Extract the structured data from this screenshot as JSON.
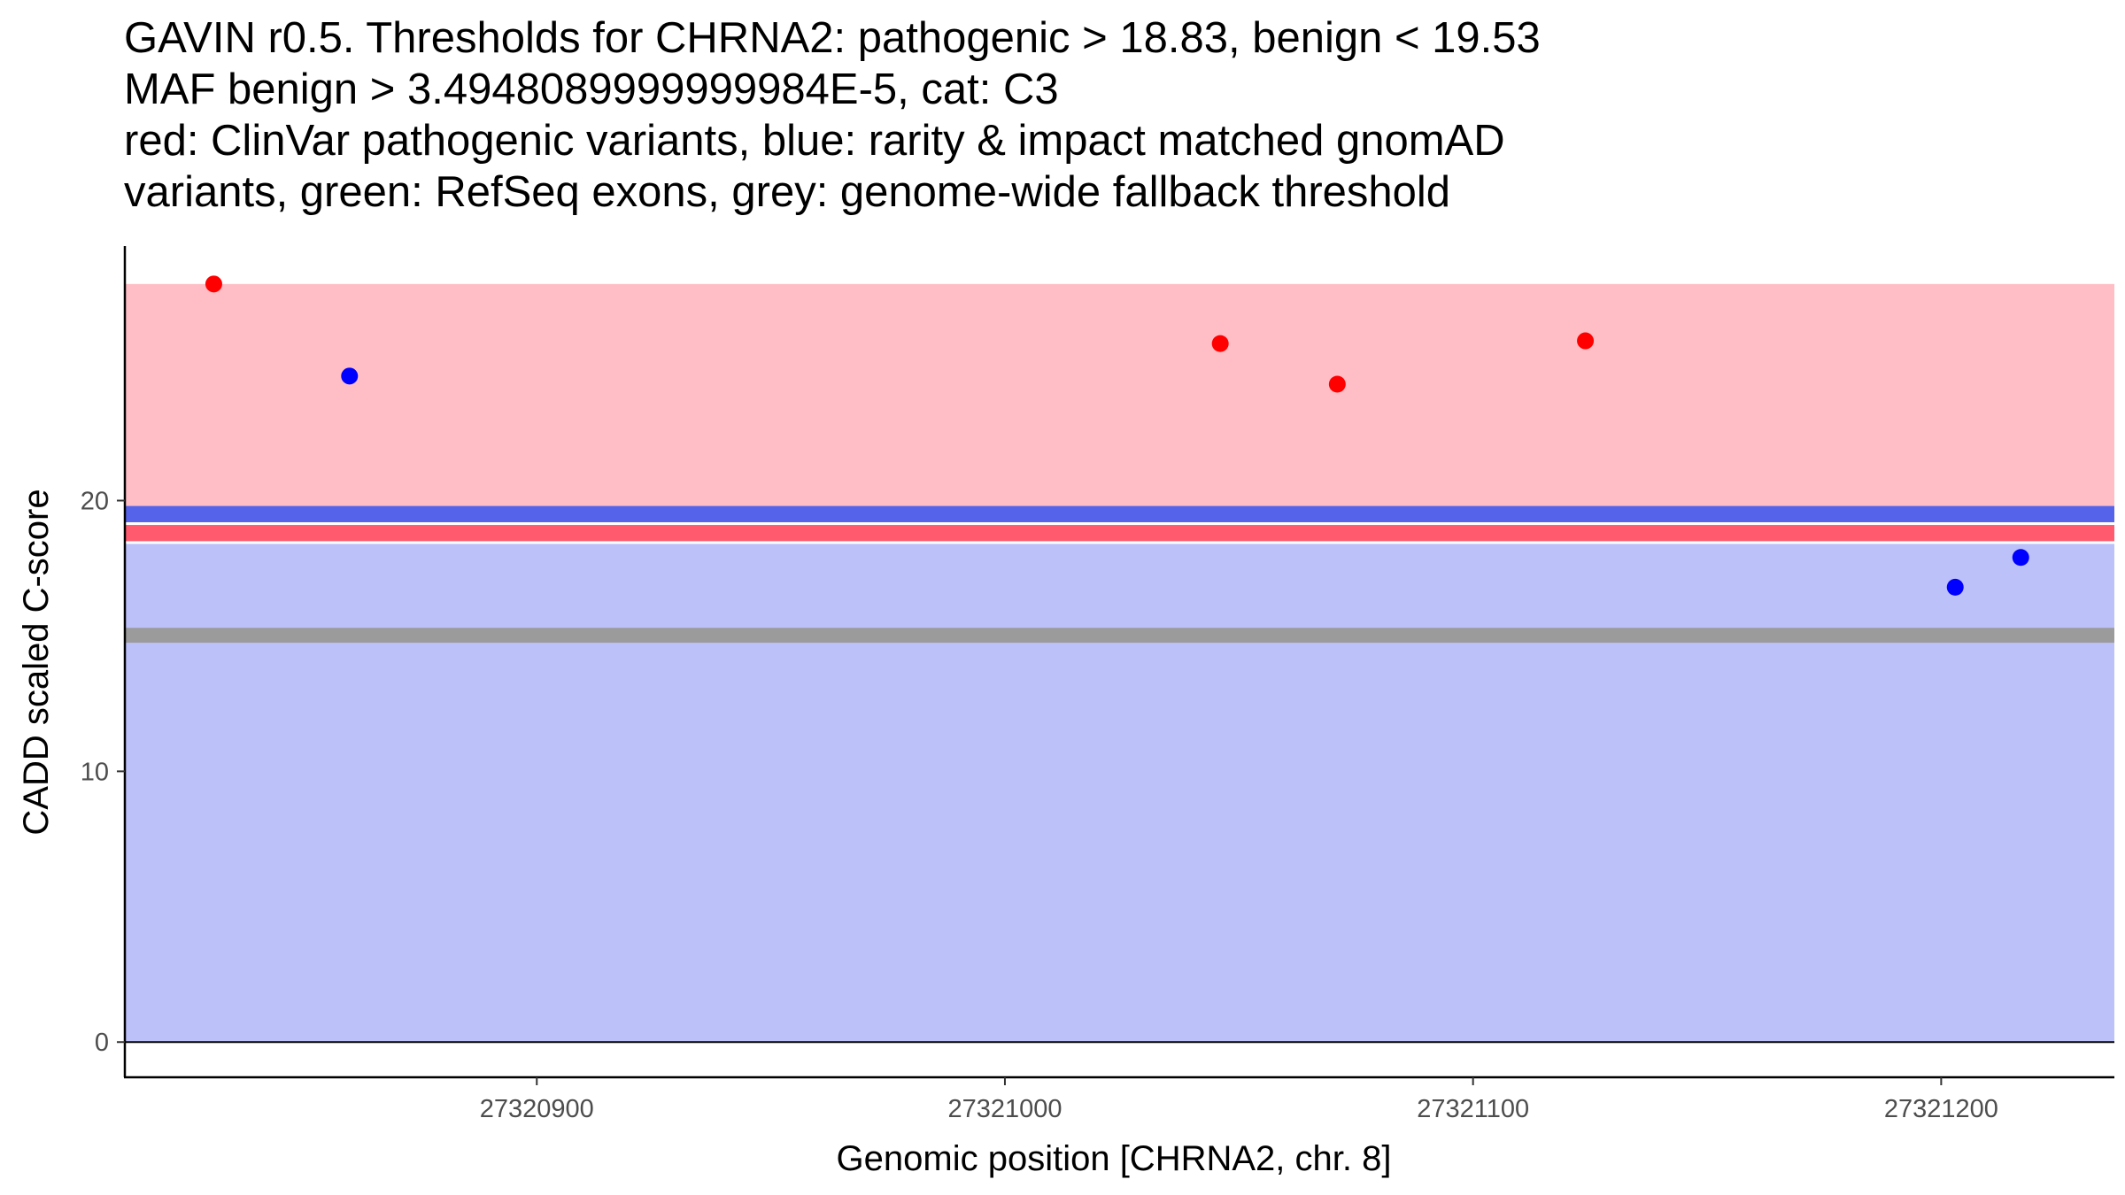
{
  "title": {
    "lines": [
      "GAVIN r0.5. Thresholds for CHRNA2: pathogenic > 18.83, benign < 19.53",
      "MAF benign > 3.4948089999999984E-5, cat: C3",
      "red: ClinVar pathogenic variants, blue: rarity & impact matched gnomAD",
      "variants, green: RefSeq exons, grey: genome-wide fallback threshold"
    ]
  },
  "colors": {
    "pathogenic_region": "#ffbec5",
    "benign_region": "#bcc1fa",
    "benign_threshold_band": "#5563ea",
    "pathogenic_threshold_band": "#ff5a6e",
    "fallback_threshold_band": "#9b9b9b",
    "pathogenic_point": "#ff0000",
    "benign_point": "#0000ff",
    "axis": "#000000"
  },
  "chart_data": {
    "type": "scatter",
    "title": "GAVIN r0.5. Thresholds for CHRNA2: pathogenic > 18.83, benign < 19.53",
    "xlabel": "Genomic position [CHRNA2, chr. 8]",
    "ylabel": "CADD scaled C-score",
    "xlim": [
      27320812,
      27321237
    ],
    "ylim": [
      -1.3,
      29.4
    ],
    "x_ticks": [
      27320900,
      27321000,
      27321100,
      27321200
    ],
    "x_tick_labels": [
      "27320900",
      "27321000",
      "27321100",
      "27321200"
    ],
    "y_ticks": [
      0,
      10,
      20
    ],
    "y_tick_labels": [
      "0",
      "10",
      "20"
    ],
    "regions": [
      {
        "name": "pathogenic-region",
        "x": [
          27320812,
          27321237
        ],
        "y": [
          19.53,
          28.0
        ],
        "color_key": "pathogenic_region"
      },
      {
        "name": "benign-region",
        "x": [
          27320812,
          27321237
        ],
        "y": [
          0,
          18.4
        ],
        "color_key": "benign_region"
      },
      {
        "name": "benign-threshold-band",
        "x": [
          27320812,
          27321237
        ],
        "y": [
          19.2,
          19.8
        ],
        "color_key": "benign_threshold_band"
      },
      {
        "name": "pathogenic-threshold-band",
        "x": [
          27320812,
          27321237
        ],
        "y": [
          18.5,
          19.1
        ],
        "color_key": "pathogenic_threshold_band"
      },
      {
        "name": "fallback-threshold-band",
        "x": [
          27320812,
          27321237
        ],
        "y": [
          14.75,
          15.3
        ],
        "color_key": "fallback_threshold_band"
      }
    ],
    "series": [
      {
        "name": "ClinVar pathogenic variants",
        "color_key": "pathogenic_point",
        "points": [
          {
            "x": 27320831,
            "y": 28.0
          },
          {
            "x": 27321046,
            "y": 25.8
          },
          {
            "x": 27321071,
            "y": 24.3
          },
          {
            "x": 27321124,
            "y": 25.9
          }
        ]
      },
      {
        "name": "gnomAD matched variants",
        "color_key": "benign_point",
        "points": [
          {
            "x": 27320860,
            "y": 24.6
          },
          {
            "x": 27321203,
            "y": 16.8
          },
          {
            "x": 27321217,
            "y": 17.9
          }
        ]
      }
    ]
  }
}
